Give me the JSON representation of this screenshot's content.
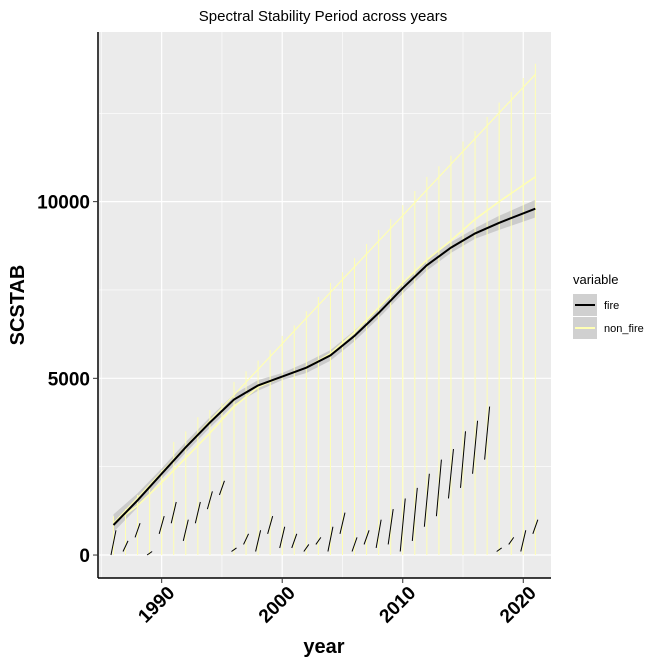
{
  "chart_data": {
    "type": "line",
    "title": "Spectral Stability Period across years",
    "xlabel": "year",
    "ylabel": "SCSTAB",
    "xlim": [
      1984.8,
      2022.3
    ],
    "ylim": [
      -650,
      14800
    ],
    "x_ticks": [
      1990,
      2000,
      2010,
      2020
    ],
    "x_tick_labels": [
      "1990",
      "2000",
      "2010",
      "2020"
    ],
    "y_ticks": [
      0,
      5000,
      10000
    ],
    "y_tick_labels": [
      "0",
      "5000",
      "10000"
    ],
    "grid": true,
    "legend": {
      "title": "variable",
      "placement": "right",
      "entries": [
        {
          "label": "fire",
          "color": "#000000"
        },
        {
          "label": "non_fire",
          "color": "#ffffb3"
        }
      ]
    },
    "series": [
      {
        "name": "fire",
        "color": "#000000",
        "smooth": {
          "x": [
            1986,
            1988,
            1990,
            1992,
            1994,
            1996,
            1998,
            2000,
            2002,
            2004,
            2006,
            2008,
            2010,
            2012,
            2014,
            2016,
            2018,
            2021
          ],
          "y": [
            850,
            1550,
            2300,
            3050,
            3750,
            4400,
            4800,
            5050,
            5300,
            5650,
            6200,
            6850,
            7550,
            8200,
            8700,
            9100,
            9400,
            9800
          ]
        },
        "band_upper": [
          1150,
          1750,
          2450,
          3200,
          3900,
          4550,
          4950,
          5150,
          5450,
          5800,
          6350,
          7000,
          7700,
          8350,
          8850,
          9250,
          9600,
          10050
        ],
        "band_lower": [
          650,
          1350,
          2150,
          2900,
          3600,
          4250,
          4650,
          4950,
          5150,
          5500,
          6050,
          6700,
          7400,
          8050,
          8550,
          8950,
          9200,
          9550
        ],
        "segments": [
          {
            "x": 1986.0,
            "y0": 0,
            "y1": 700
          },
          {
            "x": 1987.0,
            "y0": 100,
            "y1": 400
          },
          {
            "x": 1988.0,
            "y0": 500,
            "y1": 900
          },
          {
            "x": 1989.0,
            "y0": 0,
            "y1": 100
          },
          {
            "x": 1990.0,
            "y0": 600,
            "y1": 1100
          },
          {
            "x": 1991.0,
            "y0": 900,
            "y1": 1500
          },
          {
            "x": 1992.0,
            "y0": 400,
            "y1": 1000
          },
          {
            "x": 1993.0,
            "y0": 900,
            "y1": 1500
          },
          {
            "x": 1994.0,
            "y0": 1300,
            "y1": 1800
          },
          {
            "x": 1995.0,
            "y0": 1700,
            "y1": 2100
          },
          {
            "x": 1996.0,
            "y0": 100,
            "y1": 200
          },
          {
            "x": 1997.0,
            "y0": 300,
            "y1": 600
          },
          {
            "x": 1998.0,
            "y0": 100,
            "y1": 700
          },
          {
            "x": 1999.0,
            "y0": 600,
            "y1": 1100
          },
          {
            "x": 2000.0,
            "y0": 200,
            "y1": 800
          },
          {
            "x": 2001.0,
            "y0": 200,
            "y1": 600
          },
          {
            "x": 2002.0,
            "y0": 100,
            "y1": 300
          },
          {
            "x": 2003.0,
            "y0": 300,
            "y1": 500
          },
          {
            "x": 2004.0,
            "y0": 100,
            "y1": 800
          },
          {
            "x": 2005.0,
            "y0": 600,
            "y1": 1200
          },
          {
            "x": 2006.0,
            "y0": 100,
            "y1": 500
          },
          {
            "x": 2007.0,
            "y0": 300,
            "y1": 700
          },
          {
            "x": 2008.0,
            "y0": 200,
            "y1": 1000
          },
          {
            "x": 2009.0,
            "y0": 300,
            "y1": 1300
          },
          {
            "x": 2010.0,
            "y0": 100,
            "y1": 1600
          },
          {
            "x": 2011.0,
            "y0": 400,
            "y1": 1900
          },
          {
            "x": 2012.0,
            "y0": 800,
            "y1": 2300
          },
          {
            "x": 2013.0,
            "y0": 1100,
            "y1": 2700
          },
          {
            "x": 2014.0,
            "y0": 1600,
            "y1": 3000
          },
          {
            "x": 2015.0,
            "y0": 1900,
            "y1": 3500
          },
          {
            "x": 2016.0,
            "y0": 2300,
            "y1": 3800
          },
          {
            "x": 2017.0,
            "y0": 2700,
            "y1": 4200
          },
          {
            "x": 2018.0,
            "y0": 100,
            "y1": 200
          },
          {
            "x": 2019.0,
            "y0": 300,
            "y1": 500
          },
          {
            "x": 2020.0,
            "y0": 100,
            "y1": 700
          },
          {
            "x": 2021.0,
            "y0": 600,
            "y1": 1000
          }
        ]
      },
      {
        "name": "non_fire",
        "color": "#ffffb3",
        "smooth": {
          "x": [
            1986,
            1988,
            1990,
            1992,
            1994,
            1996,
            1998,
            2000,
            2002,
            2004,
            2006,
            2008,
            2010,
            2012,
            2014,
            2016,
            2018,
            2021
          ],
          "y": [
            900,
            1400,
            2050,
            2750,
            3450,
            4200,
            4750,
            5050,
            5300,
            5700,
            6300,
            7000,
            7700,
            8350,
            8900,
            9500,
            10000,
            10700
          ]
        },
        "trend": {
          "x": [
            1986,
            2021
          ],
          "y": [
            900,
            13600
          ]
        },
        "segments": [
          {
            "x": 1986.0,
            "y0": 0,
            "y1": 1100
          },
          {
            "x": 1987.0,
            "y0": 0,
            "y1": 1300
          },
          {
            "x": 1988.0,
            "y0": 0,
            "y1": 1700
          },
          {
            "x": 1989.0,
            "y0": 0,
            "y1": 2000
          },
          {
            "x": 1990.0,
            "y0": 0,
            "y1": 2400
          },
          {
            "x": 1991.0,
            "y0": 0,
            "y1": 3200
          },
          {
            "x": 1992.0,
            "y0": 0,
            "y1": 3500
          },
          {
            "x": 1993.0,
            "y0": 0,
            "y1": 3900
          },
          {
            "x": 1994.0,
            "y0": 0,
            "y1": 4100
          },
          {
            "x": 1995.0,
            "y0": 0,
            "y1": 4300
          },
          {
            "x": 1996.0,
            "y0": 0,
            "y1": 4900
          },
          {
            "x": 1997.0,
            "y0": 0,
            "y1": 5200
          },
          {
            "x": 1998.0,
            "y0": 0,
            "y1": 5500
          },
          {
            "x": 1999.0,
            "y0": 0,
            "y1": 5800
          },
          {
            "x": 2000.0,
            "y0": 0,
            "y1": 6200
          },
          {
            "x": 2001.0,
            "y0": 0,
            "y1": 6500
          },
          {
            "x": 2002.0,
            "y0": 0,
            "y1": 6900
          },
          {
            "x": 2003.0,
            "y0": 0,
            "y1": 7300
          },
          {
            "x": 2004.0,
            "y0": 0,
            "y1": 7700
          },
          {
            "x": 2005.0,
            "y0": 0,
            "y1": 8000
          },
          {
            "x": 2006.0,
            "y0": 0,
            "y1": 8400
          },
          {
            "x": 2007.0,
            "y0": 0,
            "y1": 8800
          },
          {
            "x": 2008.0,
            "y0": 0,
            "y1": 9200
          },
          {
            "x": 2009.0,
            "y0": 0,
            "y1": 9500
          },
          {
            "x": 2010.0,
            "y0": 0,
            "y1": 9900
          },
          {
            "x": 2011.0,
            "y0": 0,
            "y1": 10300
          },
          {
            "x": 2012.0,
            "y0": 0,
            "y1": 10700
          },
          {
            "x": 2013.0,
            "y0": 0,
            "y1": 11000
          },
          {
            "x": 2014.0,
            "y0": 0,
            "y1": 11300
          },
          {
            "x": 2015.0,
            "y0": 0,
            "y1": 11700
          },
          {
            "x": 2016.0,
            "y0": 0,
            "y1": 12000
          },
          {
            "x": 2017.0,
            "y0": 0,
            "y1": 12400
          },
          {
            "x": 2018.0,
            "y0": 0,
            "y1": 12800
          },
          {
            "x": 2019.0,
            "y0": 0,
            "y1": 13100
          },
          {
            "x": 2020.0,
            "y0": 0,
            "y1": 13500
          },
          {
            "x": 2021.0,
            "y0": 0,
            "y1": 13900
          }
        ]
      }
    ]
  }
}
